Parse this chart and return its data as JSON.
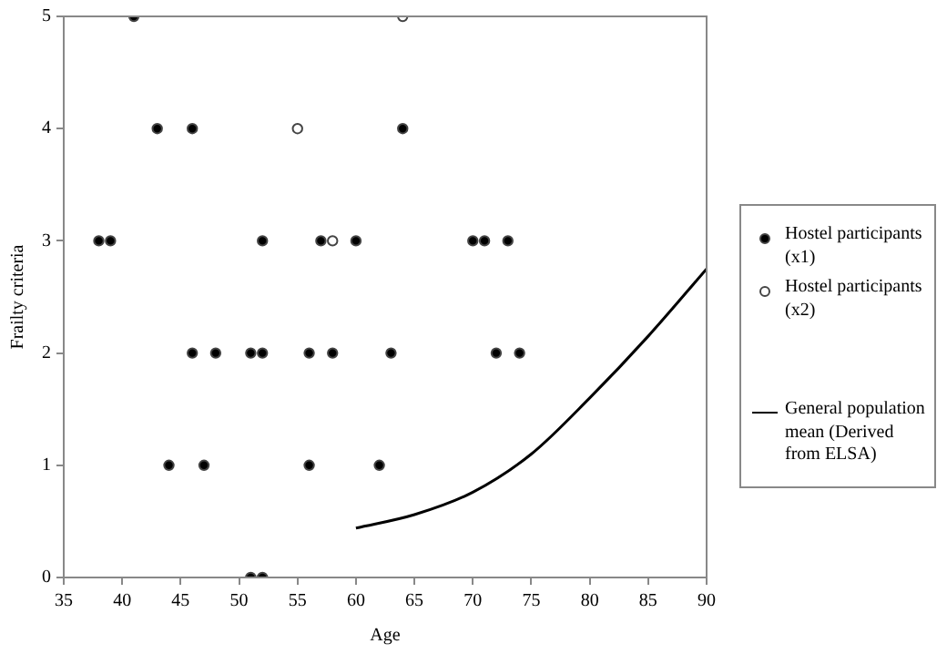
{
  "chart_data": {
    "type": "scatter",
    "xlabel": "Age",
    "ylabel": "Frailty criteria",
    "xlim": [
      35,
      90
    ],
    "xticks": [
      35,
      40,
      45,
      50,
      55,
      60,
      65,
      70,
      75,
      80,
      85,
      90
    ],
    "ylim": [
      0,
      5
    ],
    "yticks": [
      0,
      1,
      2,
      3,
      4,
      5
    ],
    "grid": false,
    "legend": "right",
    "marker": "circle",
    "series": [
      {
        "name": "Hostel participants (x1)",
        "color": "#000000",
        "x": [
          41,
          43,
          46,
          64,
          38,
          39,
          52,
          57,
          60,
          70,
          71,
          73,
          46,
          48,
          51,
          52,
          56,
          58,
          63,
          72,
          74,
          44,
          47,
          56,
          62,
          51,
          52
        ],
        "values": [
          5,
          4,
          4,
          4,
          3,
          3,
          3,
          3,
          3,
          3,
          3,
          3,
          2,
          2,
          2,
          2,
          2,
          2,
          2,
          2,
          2,
          1,
          1,
          1,
          1,
          0,
          0
        ]
      },
      {
        "name": "Hostel participants (x2)",
        "color": "#ffffff",
        "x": [
          64,
          55,
          58
        ],
        "values": [
          5,
          4,
          3
        ]
      },
      {
        "name": "General population mean (Derived from ELSA)",
        "type": "line",
        "color": "#000000",
        "marker": "none",
        "x": [
          60,
          65,
          70,
          75,
          80,
          85,
          90
        ],
        "values": [
          0.44,
          0.56,
          0.76,
          1.1,
          1.6,
          2.15,
          2.75
        ]
      }
    ]
  }
}
